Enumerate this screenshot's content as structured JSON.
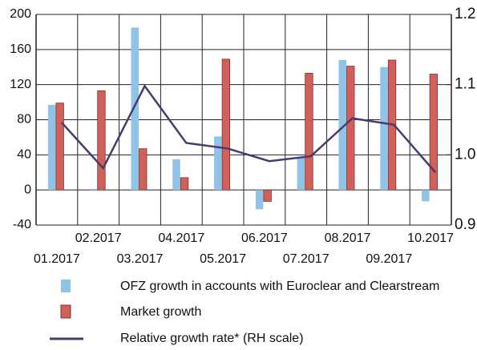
{
  "chart_data": {
    "type": "bar",
    "categories": [
      "01.2017",
      "02.2017",
      "03.2017",
      "04.2017",
      "05.2017",
      "06.2017",
      "07.2017",
      "08.2017",
      "09.2017",
      "10.2017"
    ],
    "series": [
      {
        "name": "OFZ growth in accounts with Euroclear and Clearstream",
        "color": "#8fc3e8",
        "values": [
          97,
          -1,
          185,
          35,
          61,
          -22,
          37,
          148,
          140,
          -13
        ]
      },
      {
        "name": "Market growth",
        "color": "#d0605a",
        "values": [
          99,
          113,
          47,
          14,
          149,
          -13,
          133,
          141,
          148,
          132
        ]
      },
      {
        "name": "Relative growth rate* (RH scale)",
        "color": "#4b3a6e",
        "type": "line",
        "axis": "y2",
        "values": [
          1.046,
          0.981,
          1.098,
          1.017,
          1.009,
          0.991,
          0.998,
          1.052,
          1.043,
          0.975
        ]
      }
    ],
    "ylim": [
      -40,
      200
    ],
    "yticks": [
      -40,
      0,
      40,
      80,
      120,
      160,
      200
    ],
    "y2lim": [
      0.9,
      1.2
    ],
    "y2ticks": [
      0.9,
      {
        "value": 1.0,
        "label": "1.0"
      },
      1.1,
      1.2
    ],
    "grid": true
  }
}
